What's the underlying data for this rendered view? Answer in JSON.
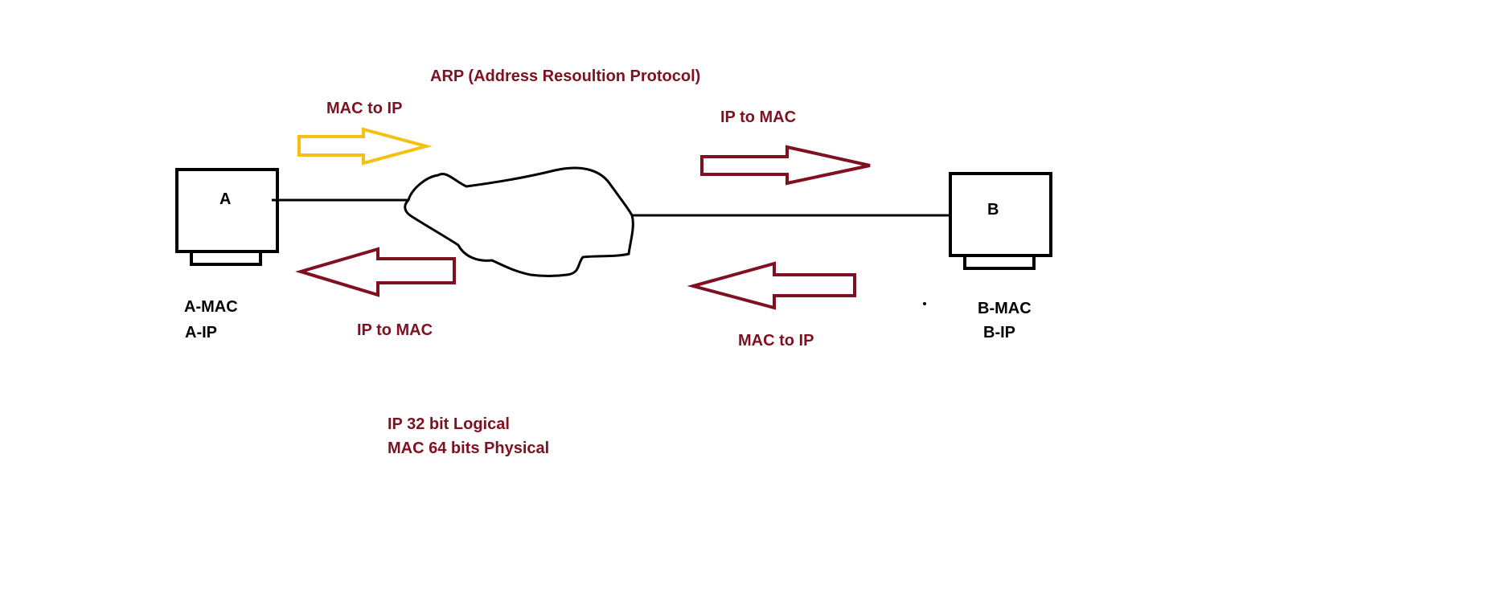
{
  "title": "ARP (Address Resoultion Protocol)",
  "colors": {
    "accent_red": "#7f1020",
    "accent_yellow": "#f5c011",
    "ink": "#000000",
    "background": "#ffffff"
  },
  "node_a": {
    "label": "A",
    "mac_label": "A-MAC",
    "ip_label": "A-IP"
  },
  "node_b": {
    "label": "B",
    "mac_label": "B-MAC",
    "ip_label": "B-IP"
  },
  "arrows": {
    "top_left_label": "MAC to IP",
    "bottom_left_label": "IP to MAC",
    "top_right_label": "IP to MAC",
    "bottom_right_label": "MAC to IP"
  },
  "notes": {
    "line1": "IP 32 bit Logical",
    "line2": "MAC 64 bits Physical"
  }
}
